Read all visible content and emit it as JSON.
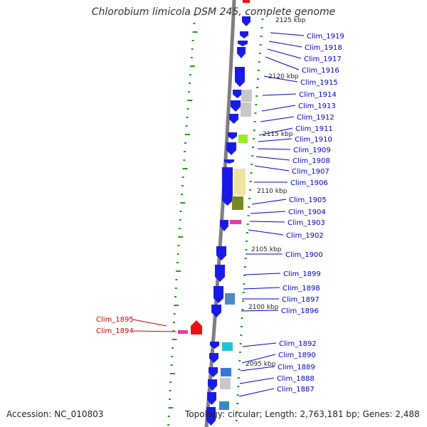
{
  "title": "Chlorobium limicola DSM 245, complete genome",
  "footer": {
    "accession": "Accession: NC_010803",
    "topology": "Topology: circular; Length: 2,763,181 bp; Genes: 2,488"
  },
  "colors": {
    "gene_blue": "#1a1ae6",
    "gene_red": "#ee1010",
    "label_blue": "#0000cc",
    "label_red": "#cc0000",
    "backbone": "#7f7f7f",
    "tick_green": "#229922",
    "pink": "#e83aa6",
    "cyan": "#22c3d8",
    "lime": "#99ee22",
    "khaki": "#eee6a0",
    "olive": "#778822",
    "grey": "#c8c8c8"
  },
  "kbp_labels": [
    "2125 kbp",
    "2120 kbp",
    "2115 kbp",
    "2110 kbp",
    "2105 kbp",
    "2100 kbp",
    "2095 kbp"
  ],
  "gene_labels_right": [
    "Clim_1919",
    "Clim_1918",
    "Clim_1917",
    "Clim_1916",
    "Clim_1915",
    "Clim_1914",
    "Clim_1913",
    "Clim_1912",
    "Clim_1911",
    "Clim_1910",
    "Clim_1909",
    "Clim_1908",
    "Clim_1907",
    "Clim_1906",
    "Clim_1905",
    "Clim_1904",
    "Clim_1903",
    "Clim_1902",
    "Clim_1900",
    "Clim_1899",
    "Clim_1898",
    "Clim_1897",
    "Clim_1896",
    "Clim_1892",
    "Clim_1890",
    "Clim_1889",
    "Clim_1888",
    "Clim_1887"
  ],
  "gene_labels_left": [
    "Clim_1895",
    "Clim_1894"
  ]
}
